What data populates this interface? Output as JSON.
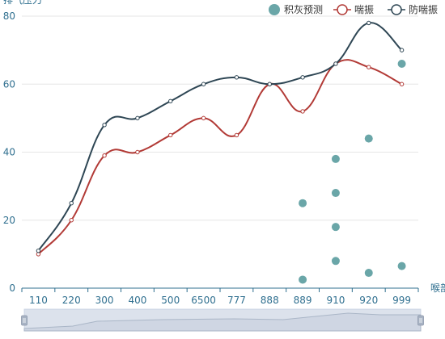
{
  "chart_data": {
    "type": "line",
    "title": "",
    "ylabel": "排气压力",
    "xlabel": "喉部",
    "categories": [
      "110",
      "220",
      "300",
      "400",
      "500",
      "6500",
      "777",
      "888",
      "889",
      "910",
      "920",
      "999"
    ],
    "ylim": [
      0,
      80
    ],
    "yticks": [
      0,
      20,
      40,
      60,
      80
    ],
    "grid": true,
    "legend_position": "top-right",
    "series": [
      {
        "name": "喘振",
        "kind": "line",
        "color": "#b23a36",
        "values": [
          10,
          20,
          39,
          40,
          45,
          50,
          45,
          60,
          52,
          66,
          65,
          60
        ]
      },
      {
        "name": "防喘振",
        "kind": "line",
        "color": "#2e4654",
        "values": [
          11,
          25,
          48,
          50,
          55,
          60,
          62,
          60,
          62,
          66,
          78,
          70
        ]
      },
      {
        "name": "积灰预测",
        "kind": "scatter",
        "color": "#6aa6a8",
        "points": [
          {
            "x": "889",
            "y": 25
          },
          {
            "x": "889",
            "y": 2.5
          },
          {
            "x": "910",
            "y": 38
          },
          {
            "x": "910",
            "y": 28
          },
          {
            "x": "910",
            "y": 18
          },
          {
            "x": "910",
            "y": 8
          },
          {
            "x": "920",
            "y": 44
          },
          {
            "x": "920",
            "y": 4.5
          },
          {
            "x": "999",
            "y": 66
          },
          {
            "x": "999",
            "y": 6.5
          }
        ]
      }
    ],
    "legend": [
      "积灰预测",
      "喘振",
      "防喘振"
    ],
    "data_zoom": {
      "range_percent": [
        0,
        100
      ]
    }
  }
}
